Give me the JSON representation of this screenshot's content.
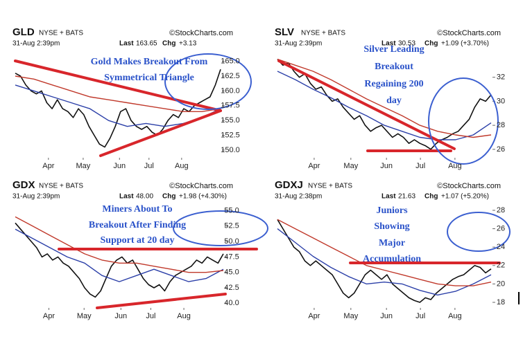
{
  "chart_data": [
    {
      "type": "line",
      "title": "GLD",
      "exchange": "NYSE + BATS",
      "source": "©StockCharts.com",
      "timestamp": "31-Aug 2:39pm",
      "last_label": "Last",
      "last": "163.65",
      "chg_label": "Chg",
      "chg": "+3.13",
      "annotation": [
        "Gold Makes Breakout From",
        "Symmetrical Triangle"
      ],
      "series": [
        {
          "color": "#111111",
          "values": [
            163,
            162.5,
            161,
            160,
            159.5,
            160,
            158,
            157,
            158.5,
            157,
            156.5,
            155.5,
            157,
            156,
            154,
            152.5,
            151,
            150.5,
            152,
            154,
            156.5,
            157,
            155,
            154,
            153.5,
            154,
            153,
            152.5,
            153.5,
            155,
            156,
            155.5,
            157,
            156.5,
            157.5,
            158,
            158.5,
            159,
            161,
            163.65
          ]
        },
        {
          "color": "#2b3fa8",
          "values": [
            161,
            160,
            159,
            158,
            157,
            155,
            154,
            154.5,
            154,
            154.5,
            155.5,
            157
          ]
        },
        {
          "color": "#c0392b",
          "values": [
            162.5,
            162,
            161,
            160,
            159,
            158.5,
            158,
            157.5,
            157,
            156.5,
            156.5,
            157
          ]
        }
      ],
      "xlim": [
        0,
        39
      ],
      "xticks": [
        {
          "value": 6.3,
          "label": "Apr"
        },
        {
          "value": 12.9,
          "label": "May"
        },
        {
          "value": 19.8,
          "label": "Jun"
        },
        {
          "value": 25.4,
          "label": "Jul"
        },
        {
          "value": 31.6,
          "label": "Aug"
        }
      ],
      "ylim": [
        148.7,
        166.6
      ],
      "yticks": [
        {
          "value": 150,
          "label": "150.0"
        },
        152.5,
        {
          "value": 155,
          "label": "155.0"
        },
        157.5,
        {
          "value": 160,
          "label": "160.0"
        },
        162.5,
        {
          "value": 165,
          "label": "165.0"
        }
      ]
    },
    {
      "type": "line",
      "title": "SLV",
      "exchange": "NYSE + BATS",
      "source": "©StockCharts.com",
      "timestamp": "31-Aug 2:39pm",
      "last_label": "Last",
      "last": "30.53",
      "chg_label": "Chg",
      "chg": "+1.09 (+3.70%)",
      "annotation": [
        "Silver Leading",
        "Breakout",
        "Regaining 200",
        "day"
      ],
      "series": [
        {
          "color": "#111111",
          "values": [
            33.5,
            33,
            33.2,
            32.5,
            32,
            32.3,
            31.5,
            31,
            31.2,
            30.5,
            30,
            30.2,
            29.5,
            29,
            28.5,
            28.8,
            28,
            27.5,
            27.8,
            28,
            27.5,
            27,
            27.3,
            27,
            26.5,
            26.8,
            26.5,
            26.3,
            26,
            26.5,
            26.8,
            27,
            27.3,
            27.5,
            28,
            28.5,
            29.5,
            30.2,
            30,
            30.53
          ]
        },
        {
          "color": "#2b3fa8",
          "values": [
            32.5,
            31.8,
            31,
            30.3,
            29.5,
            28.8,
            28,
            27.5,
            27,
            26.8,
            26.8,
            27.2,
            28.2
          ]
        },
        {
          "color": "#c0392b",
          "values": [
            33.5,
            33,
            32.5,
            31.8,
            31,
            30.2,
            29.5,
            28.8,
            28,
            27.5,
            27.2,
            27,
            27.2
          ]
        }
      ],
      "xlim": [
        0,
        39
      ],
      "xticks": [
        {
          "value": 6.7,
          "label": "Apr"
        },
        {
          "value": 13.4,
          "label": "May"
        },
        {
          "value": 19.9,
          "label": "Jun"
        },
        {
          "value": 26.1,
          "label": "Jul"
        },
        {
          "value": 32.4,
          "label": "Aug"
        }
      ],
      "ylim": [
        25.3,
        34.4
      ],
      "yticks": [
        26,
        28,
        30,
        32
      ]
    },
    {
      "type": "line",
      "title": "GDX",
      "exchange": "NYSE + BATS",
      "source": "©StockCharts.com",
      "timestamp": "31-Aug 2:39pm",
      "last_label": "Last",
      "last": "48.00",
      "chg_label": "Chg",
      "chg": "+1.98 (+4.30%)",
      "annotation": [
        "Miners About To",
        "Breakout After Finding",
        "Support at 20 day"
      ],
      "series": [
        {
          "color": "#111111",
          "values": [
            53,
            52,
            51,
            50,
            49,
            47.5,
            48,
            47,
            47.5,
            46.5,
            46,
            45,
            44,
            42.5,
            41.5,
            41,
            42,
            44,
            46,
            47,
            47.5,
            46.5,
            47,
            45.5,
            44,
            43,
            42.5,
            43,
            42,
            43.5,
            44.5,
            45,
            45.5,
            46,
            47,
            46.5,
            47.5,
            47,
            46.5,
            48
          ]
        },
        {
          "color": "#2b3fa8",
          "values": [
            52,
            50.5,
            49,
            47.5,
            46.5,
            44.5,
            43.5,
            44.5,
            45.5,
            44.5,
            43.5,
            44,
            45.5
          ]
        },
        {
          "color": "#c0392b",
          "values": [
            54,
            52.5,
            51,
            49.5,
            48,
            47,
            46.5,
            46.5,
            46,
            45.5,
            45,
            45,
            45.3
          ]
        }
      ],
      "xlim": [
        0,
        39
      ],
      "xticks": [
        {
          "value": 6.3,
          "label": "Apr"
        },
        {
          "value": 12.9,
          "label": "May"
        },
        {
          "value": 19.8,
          "label": "Jun"
        },
        {
          "value": 25.4,
          "label": "Jul"
        },
        {
          "value": 31.6,
          "label": "Aug"
        }
      ],
      "ylim": [
        39.25,
        56.4
      ],
      "yticks": [
        {
          "value": 40,
          "label": "40.0"
        },
        42.5,
        {
          "value": 45,
          "label": "45.0"
        },
        47.5,
        {
          "value": 50,
          "label": "50.0"
        },
        52.5,
        {
          "value": 55,
          "label": "55.0"
        }
      ]
    },
    {
      "type": "line",
      "title": "GDXJ",
      "exchange": "NYSE + BATS",
      "source": "©StockCharts.com",
      "timestamp": "31-Aug 2:38pm",
      "last_label": "Last",
      "last": "21.63",
      "chg_label": "Chg",
      "chg": "+1.07 (+5.20%)",
      "annotation": [
        "Juniors",
        "Showing",
        "Major",
        "Accumulation"
      ],
      "series": [
        {
          "color": "#111111",
          "values": [
            27,
            26,
            25,
            24,
            23.5,
            22.5,
            22,
            22.5,
            22,
            21.5,
            21,
            20,
            19,
            18.5,
            19,
            20,
            21,
            21.5,
            21,
            20.5,
            21,
            20,
            19.5,
            19,
            18.5,
            18.2,
            18,
            18.5,
            18.3,
            19,
            19.5,
            20,
            20.5,
            20.8,
            21,
            21.5,
            22,
            21.8,
            21.2,
            21.63
          ]
        },
        {
          "color": "#2b3fa8",
          "values": [
            26,
            24.5,
            23,
            21.8,
            20.8,
            20,
            20.2,
            20,
            19.3,
            18.8,
            19.2,
            20,
            21
          ]
        },
        {
          "color": "#c0392b",
          "values": [
            27,
            26,
            25,
            24,
            23,
            22,
            21.5,
            21,
            20.5,
            20,
            19.8,
            19.8,
            20.2
          ]
        }
      ],
      "xlim": [
        0,
        39
      ],
      "xticks": [
        {
          "value": 6.7,
          "label": "Apr"
        },
        {
          "value": 13.4,
          "label": "May"
        },
        {
          "value": 19.9,
          "label": "Jun"
        },
        {
          "value": 26.1,
          "label": "Jul"
        },
        {
          "value": 32.4,
          "label": "Aug"
        }
      ],
      "ylim": [
        17.4,
        28.9
      ],
      "yticks": [
        18,
        20,
        22,
        24,
        26,
        28
      ]
    }
  ]
}
